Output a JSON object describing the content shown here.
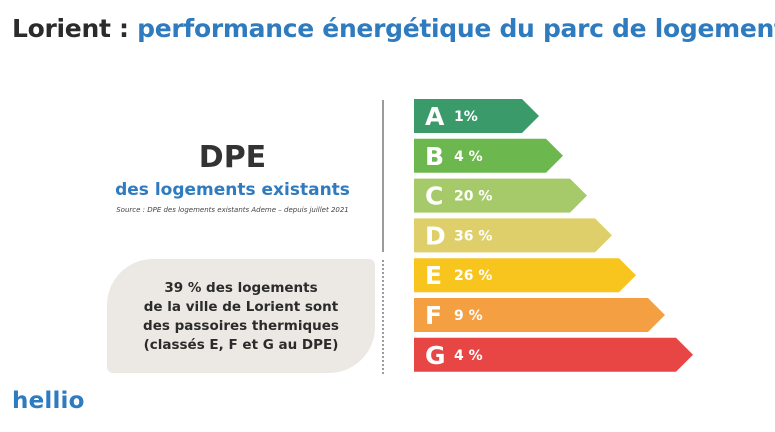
{
  "title": {
    "city": "Lorient :",
    "rest": "performance énergétique du parc de logements"
  },
  "dpe": {
    "heading": "DPE",
    "subheading": "des logements existants",
    "source": "Source : DPE des logements existants Ademe – depuis juillet 2021"
  },
  "callout": {
    "lines": [
      "39 % des logements",
      "de la ville de Lorient sont",
      "des passoires thermiques",
      "(classés E, F et G au DPE)"
    ]
  },
  "logo": "hellio",
  "chart_data": {
    "type": "bar",
    "categories": [
      "A",
      "B",
      "C",
      "D",
      "E",
      "F",
      "G"
    ],
    "values": [
      1,
      4,
      20,
      36,
      26,
      9,
      4
    ],
    "value_labels": [
      "1%",
      "4 %",
      "20 %",
      "36 %",
      "26 %",
      "9 %",
      "4 %"
    ],
    "colors": [
      "#3a9a6a",
      "#6cb84e",
      "#a6c96a",
      "#dfcf6a",
      "#f8c51f",
      "#f4a042",
      "#e84545"
    ],
    "title": "",
    "xlabel": "",
    "ylabel": ""
  }
}
